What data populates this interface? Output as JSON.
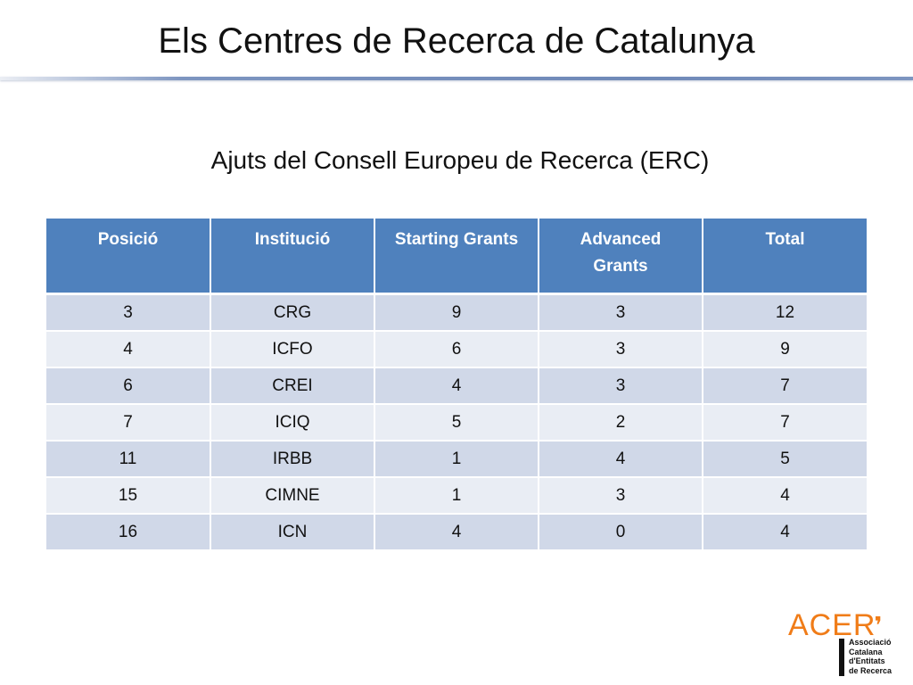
{
  "slide": {
    "title": "Els Centres de Recerca de Catalunya",
    "subtitle": "Ajuts del Consell Europeu de Recerca (ERC)"
  },
  "table": {
    "headers": [
      "Posició",
      "Institució",
      "Starting Grants",
      "Advanced Grants",
      "Total"
    ],
    "rows": [
      [
        "3",
        "CRG",
        "9",
        "3",
        "12"
      ],
      [
        "4",
        "ICFO",
        "6",
        "3",
        "9"
      ],
      [
        "6",
        "CREI",
        "4",
        "3",
        "7"
      ],
      [
        "7",
        "ICIQ",
        "5",
        "2",
        "7"
      ],
      [
        "11",
        "IRBB",
        "1",
        "4",
        "5"
      ],
      [
        "15",
        "CIMNE",
        "1",
        "3",
        "4"
      ],
      [
        "16",
        "ICN",
        "4",
        "0",
        "4"
      ]
    ]
  },
  "logo": {
    "mark": "ACER",
    "lines": [
      "Associació",
      "Catalana",
      "d'Entitats",
      "de Recerca"
    ]
  },
  "colors": {
    "header_bg": "#4f81bd",
    "row_odd": "#d0d8e8",
    "row_even": "#e9edf4",
    "logo_orange": "#f07c18"
  }
}
